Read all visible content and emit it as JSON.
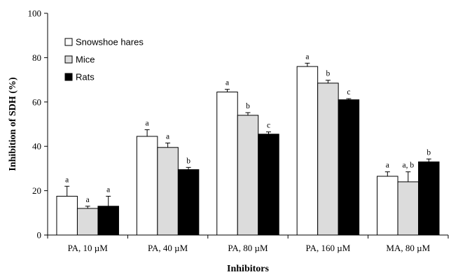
{
  "chart_data": {
    "type": "bar",
    "xlabel": "Inhibitors",
    "ylabel": "Inhibition of SDH (%)",
    "ylim": [
      0,
      100
    ],
    "yticks": [
      0,
      20,
      40,
      60,
      80,
      100
    ],
    "categories": [
      "PA, 10 µM",
      "PA, 40 µM",
      "PA, 80 µM",
      "PA, 160 µM",
      "MA, 80 µM"
    ],
    "legend_position": "top-left",
    "series": [
      {
        "name": "Snowshoe hares",
        "color": "#ffffff",
        "values": [
          17.5,
          44.5,
          64.5,
          76,
          26.5
        ],
        "errors": [
          4.5,
          3,
          1.2,
          1.5,
          2
        ],
        "letters": [
          "a",
          "a",
          "a",
          "a",
          "a"
        ]
      },
      {
        "name": "Mice",
        "color": "#dcdcdc",
        "values": [
          12,
          39.5,
          54,
          68.5,
          24
        ],
        "errors": [
          1,
          2,
          1.2,
          1.3,
          4.5
        ],
        "letters": [
          "a",
          "a",
          "b",
          "b",
          "a, b"
        ]
      },
      {
        "name": "Rats",
        "color": "#000000",
        "values": [
          13,
          29.5,
          45.5,
          61,
          33
        ],
        "errors": [
          4.5,
          1,
          1,
          0.5,
          1.3
        ],
        "letters": [
          "a",
          "b",
          "c",
          "c",
          "b"
        ]
      }
    ]
  }
}
